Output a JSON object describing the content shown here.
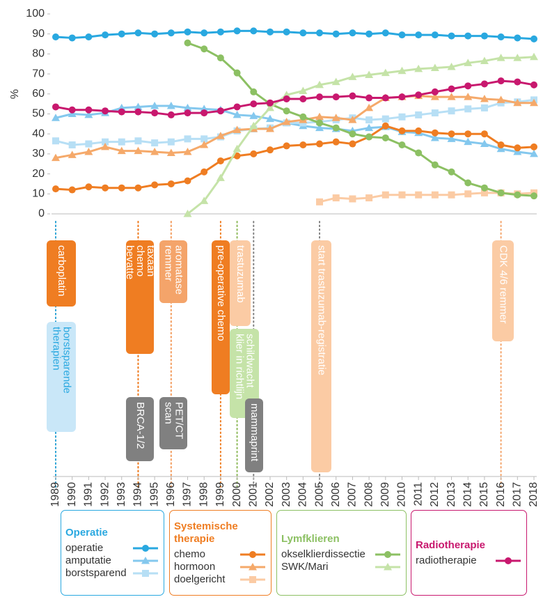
{
  "chart_data": {
    "type": "line",
    "y_label": "%",
    "ylim": [
      0,
      100
    ],
    "yticks": [
      0,
      10,
      20,
      30,
      40,
      50,
      60,
      70,
      80,
      90,
      100
    ],
    "xlim": [
      1989,
      2018
    ],
    "xticks": [
      1989,
      1990,
      1991,
      1992,
      1993,
      1994,
      1995,
      1996,
      1997,
      1998,
      1999,
      2000,
      2001,
      2002,
      2003,
      2004,
      2005,
      2006,
      2007,
      2008,
      2009,
      2010,
      2011,
      2012,
      2013,
      2014,
      2015,
      2016,
      2017,
      2018
    ],
    "x": [
      1989,
      1990,
      1991,
      1992,
      1993,
      1994,
      1995,
      1996,
      1997,
      1998,
      1999,
      2000,
      2001,
      2002,
      2003,
      2004,
      2005,
      2006,
      2007,
      2008,
      2009,
      2010,
      2011,
      2012,
      2013,
      2014,
      2015,
      2016,
      2017,
      2018
    ],
    "series": [
      {
        "name": "operatie",
        "color": "#29a8e0",
        "marker": "circle",
        "values": [
          88.5,
          88,
          88.5,
          89.5,
          90,
          90.5,
          90,
          90.5,
          91,
          90.5,
          91,
          91.5,
          91.5,
          91,
          91,
          90.5,
          90.5,
          90,
          90.5,
          90,
          90.5,
          89.5,
          89.5,
          89.5,
          89,
          89,
          89,
          88.5,
          88,
          87.5
        ]
      },
      {
        "name": "amputatie",
        "color": "#84c8ee",
        "marker": "triangle",
        "values": [
          48,
          50,
          49.5,
          50.5,
          53,
          53.5,
          54,
          54,
          53,
          52.5,
          52,
          49.5,
          49,
          47.5,
          45.5,
          44,
          43,
          42.5,
          41.5,
          43,
          43.5,
          41,
          40.5,
          38,
          37.5,
          36,
          35,
          32.5,
          31,
          30
        ]
      },
      {
        "name": "borstsparend",
        "color": "#b7dff5",
        "marker": "square",
        "values": [
          36.5,
          34.5,
          35,
          36,
          36,
          36.5,
          35.5,
          36,
          37.5,
          37.5,
          38.5,
          41.5,
          42.5,
          43,
          45.5,
          45.5,
          46,
          47,
          48,
          47,
          47.5,
          48.5,
          49.5,
          50.5,
          51.5,
          52.5,
          53,
          55.5,
          56,
          57
        ]
      },
      {
        "name": "chemo",
        "color": "#ef7d22",
        "marker": "circle",
        "values": [
          12.5,
          12,
          13.5,
          13,
          13,
          13,
          14.5,
          15,
          16.5,
          21,
          26.5,
          29,
          30,
          32,
          34,
          34.5,
          35,
          36,
          35,
          38.5,
          44,
          41.5,
          41.5,
          40.5,
          40,
          40,
          40,
          34.5,
          33,
          33.5
        ]
      },
      {
        "name": "hormoon",
        "color": "#f5a96a",
        "marker": "triangle",
        "values": [
          28,
          29.5,
          31,
          33.5,
          31.5,
          31.5,
          31,
          30.5,
          31,
          34.5,
          39,
          42,
          42.5,
          42.5,
          46,
          47,
          48.5,
          48,
          47,
          53,
          58,
          58.5,
          59,
          58.5,
          58.5,
          58.5,
          57.5,
          57,
          55.5,
          55.5
        ]
      },
      {
        "name": "doelgericht",
        "color": "#fbcba4",
        "marker": "square",
        "values": [
          null,
          null,
          null,
          null,
          null,
          null,
          null,
          null,
          null,
          null,
          null,
          null,
          null,
          null,
          null,
          null,
          6,
          8,
          7.5,
          8,
          9.5,
          9.5,
          9.5,
          9.5,
          9.5,
          10,
          10.5,
          10.5,
          10,
          10.5
        ]
      },
      {
        "name": "okselklierdissectie",
        "color": "#8cc063",
        "marker": "circle",
        "values": [
          null,
          null,
          null,
          null,
          null,
          null,
          null,
          null,
          85.5,
          82.5,
          78,
          70.5,
          61,
          55,
          51.5,
          48.5,
          45.5,
          43,
          40,
          38.5,
          38,
          34.5,
          30.5,
          24.5,
          21,
          15.5,
          13,
          10.5,
          9.5,
          9
        ]
      },
      {
        "name": "SWK/Mari",
        "color": "#c5e3a8",
        "marker": "triangle",
        "values": [
          null,
          null,
          null,
          null,
          null,
          null,
          null,
          null,
          0,
          6.5,
          18,
          32.5,
          44,
          53,
          59.5,
          61.5,
          64.5,
          66,
          68.5,
          69.5,
          70.5,
          71.5,
          72.5,
          73,
          73.5,
          75.5,
          76.5,
          78,
          78,
          78.5
        ]
      },
      {
        "name": "radiotherapie",
        "color": "#c8186e",
        "marker": "circle",
        "values": [
          53.5,
          52,
          52,
          51.5,
          51,
          51,
          50.5,
          49.5,
          50.5,
          50.5,
          51.5,
          53.5,
          55,
          55.5,
          57.5,
          57.5,
          58.5,
          58.5,
          59,
          58,
          58,
          58.5,
          59.5,
          61,
          62.5,
          64,
          65,
          66.5,
          66,
          64.5
        ]
      }
    ],
    "legend_groups": [
      {
        "title": "Operatie",
        "color": "#29a8e0"
      },
      {
        "title": "Systemische therapie",
        "color": "#ef7d22"
      },
      {
        "title": "Lymfklieren",
        "color": "#8cc063"
      },
      {
        "title": "Radiotherapie",
        "color": "#c8186e"
      }
    ],
    "events": [
      {
        "lines": [
          "carboplatin"
        ],
        "x": 1989,
        "color": "#ef7d22",
        "text_color": "#ffffff",
        "line_color": "#ef7d22"
      },
      {
        "lines": [
          "borstsparende",
          "therapien"
        ],
        "x": 1989,
        "color": "#c9e7f8",
        "text_color": "#29a8e0",
        "line_color": "#29a8e0"
      },
      {
        "lines": [
          "taxaan",
          "chemo",
          "bevatte"
        ],
        "x": 1994,
        "color": "#ef7d22",
        "text_color": "#ffffff",
        "line_color": "#ef7d22"
      },
      {
        "lines": [
          "BRCA-1/2"
        ],
        "x": 1994,
        "color": "#808080",
        "text_color": "#ffffff",
        "line_color": "#ef7d22"
      },
      {
        "lines": [
          "aromatase",
          "remmer"
        ],
        "x": 1996,
        "color": "#f4a46a",
        "text_color": "#ffffff",
        "line_color": "#f4a46a"
      },
      {
        "lines": [
          "PET/CT",
          "scan"
        ],
        "x": 1996,
        "color": "#808080",
        "text_color": "#ffffff",
        "line_color": "#f4a46a"
      },
      {
        "lines": [
          "pre-operative chemo"
        ],
        "x": 1999,
        "color": "#ef7d22",
        "text_color": "#ffffff",
        "line_color": "#ef7d22"
      },
      {
        "lines": [
          "trastuzumab"
        ],
        "x": 2000,
        "color": "#fbcba4",
        "text_color": "#ffffff",
        "line_color": "#f4a46a"
      },
      {
        "lines": [
          "schildwacht",
          "klier in richtlijn"
        ],
        "x": 2000,
        "color": "#c5e3a8",
        "text_color": "#ffffff",
        "line_color": "#8cc063"
      },
      {
        "lines": [
          "mammaprint"
        ],
        "x": 2001,
        "color": "#808080",
        "text_color": "#ffffff",
        "line_color": "#808080"
      },
      {
        "lines": [
          "start trastuzumab-registratie"
        ],
        "x": 2005,
        "color": "#fbcba4",
        "text_color": "#ffffff",
        "line_color": "#808080"
      },
      {
        "lines": [
          "CDK 4/6 remmer"
        ],
        "x": 2016,
        "color": "#fbcba4",
        "text_color": "#ffffff",
        "line_color": "#f4a46a"
      }
    ]
  }
}
